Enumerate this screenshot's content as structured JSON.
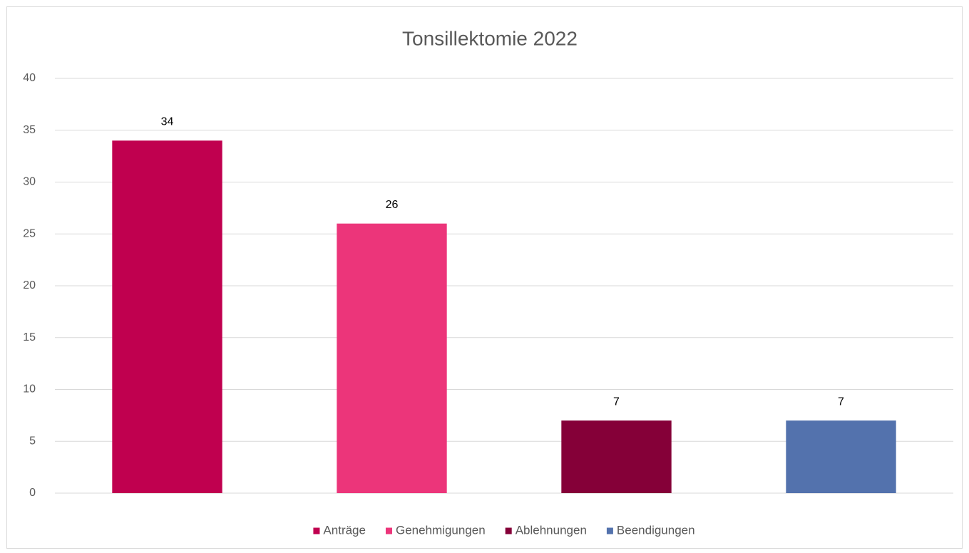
{
  "chart_data": {
    "type": "bar",
    "title": "Tonsillektomie 2022",
    "categories": [
      null
    ],
    "series": [
      {
        "name": "Anträge",
        "color": "#c0004f",
        "values": [
          34
        ]
      },
      {
        "name": "Genehmigungen",
        "color": "#ec357a",
        "values": [
          26
        ]
      },
      {
        "name": "Ablehnungen",
        "color": "#850038",
        "values": [
          7
        ]
      },
      {
        "name": "Beendigungen",
        "color": "#5372ad",
        "values": [
          7
        ]
      }
    ],
    "ylim": [
      0,
      40
    ],
    "yticks": [
      0,
      5,
      10,
      15,
      20,
      25,
      30,
      35,
      40
    ],
    "grid": true,
    "legend": "bottom"
  }
}
